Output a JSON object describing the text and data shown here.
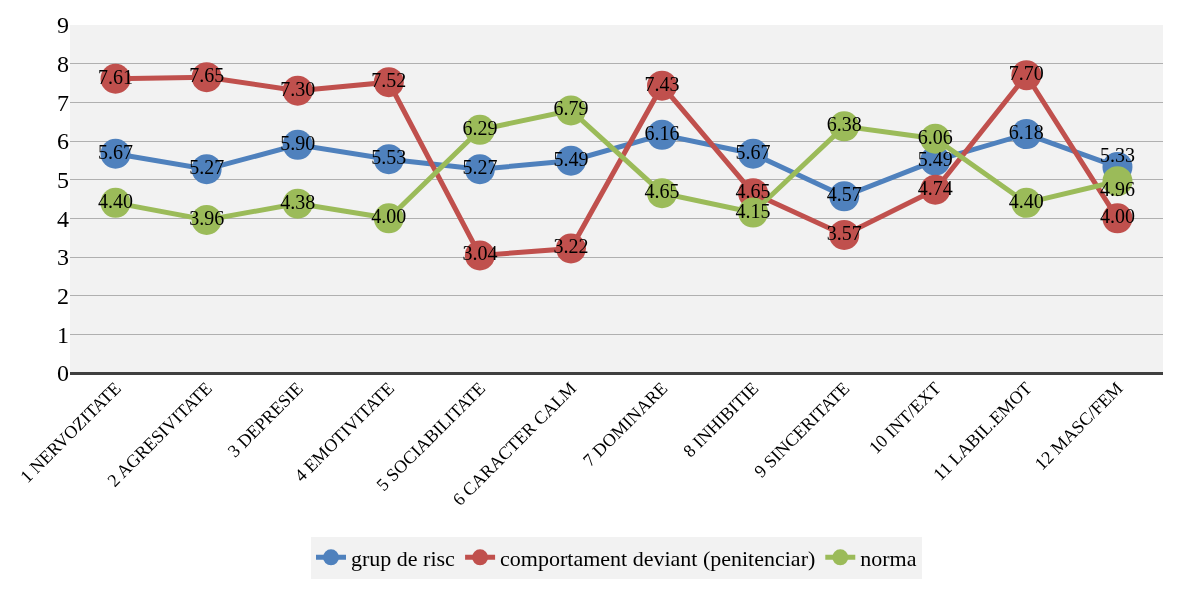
{
  "chart_data": {
    "type": "line",
    "categories": [
      "1 NERVOZITATE",
      "2 AGRESIVITATE",
      "3 DEPRESIE",
      "4 EMOTIVITATE",
      "5 SOCIABILITATE",
      "6 CARACTER CALM",
      "7 DOMINARE",
      "8 INHIBITIE",
      "9 SINCERITATE",
      "10 INT/EXT",
      "11 LABIL.EMOT",
      "12 MASC/FEM"
    ],
    "series": [
      {
        "name": "grup de risc",
        "color": "#4f81bd",
        "values": [
          5.67,
          5.27,
          5.9,
          5.53,
          5.27,
          5.49,
          6.16,
          5.67,
          4.57,
          5.49,
          6.18,
          5.33
        ],
        "value_labels": [
          "5.67",
          "5.27",
          "5.90",
          "5.53",
          "5.27",
          "5.49",
          "6.16",
          "5.67",
          "4.57",
          "5.49",
          "6.18",
          "5.33"
        ]
      },
      {
        "name": "comportament deviant (penitenciar)",
        "color": "#c0504d",
        "values": [
          7.61,
          7.65,
          7.3,
          7.52,
          3.04,
          3.22,
          7.43,
          4.65,
          3.57,
          4.74,
          7.7,
          4.0
        ],
        "value_labels": [
          "7.61",
          "7.65",
          "7.30",
          "7.52",
          "3.04",
          "3.22",
          "7.43",
          "4.65",
          "3.57",
          "4.74",
          "7.70",
          "4.00"
        ]
      },
      {
        "name": "norma",
        "color": "#9bbb59",
        "values": [
          4.4,
          3.96,
          4.38,
          4.0,
          6.29,
          6.79,
          4.65,
          4.15,
          6.38,
          6.06,
          4.4,
          4.96
        ],
        "value_labels": [
          "4.40",
          "3.96",
          "4.38",
          "4.00",
          "6.29",
          "6.79",
          "4.65",
          "4.15",
          "6.38",
          "6.06",
          "4.40",
          "4.96"
        ]
      }
    ],
    "ylim": [
      0,
      9
    ],
    "yticks": [
      0,
      1,
      2,
      3,
      4,
      5,
      6,
      7,
      8,
      9
    ],
    "grid": "y",
    "legend": "bottom",
    "marker": "circle",
    "line_style": "solid"
  }
}
